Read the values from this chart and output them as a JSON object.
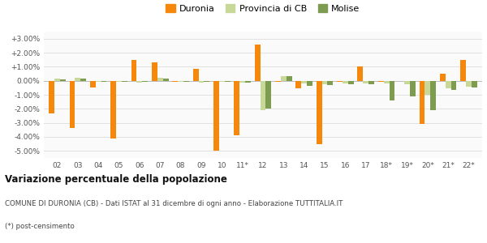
{
  "categories": [
    "02",
    "03",
    "04",
    "05",
    "06",
    "07",
    "08",
    "09",
    "10",
    "11*",
    "12",
    "13",
    "14",
    "15",
    "16",
    "17",
    "18*",
    "19*",
    "20*",
    "21*",
    "22*"
  ],
  "duronia": [
    -2.3,
    -3.35,
    -0.5,
    -4.1,
    1.5,
    1.3,
    -0.1,
    0.85,
    -5.0,
    -3.9,
    2.6,
    -0.1,
    -0.55,
    -4.5,
    -0.1,
    1.0,
    -0.1,
    0.0,
    -3.1,
    0.5,
    1.5
  ],
  "provincia_cb": [
    0.15,
    0.2,
    -0.05,
    -0.1,
    -0.15,
    0.2,
    -0.05,
    -0.15,
    -0.05,
    -0.15,
    -2.1,
    0.35,
    -0.2,
    -0.25,
    -0.2,
    -0.2,
    -0.2,
    -0.25,
    -1.0,
    -0.55,
    -0.4
  ],
  "molise": [
    0.1,
    0.15,
    -0.1,
    -0.1,
    -0.1,
    0.15,
    -0.1,
    -0.1,
    -0.05,
    -0.15,
    -2.0,
    0.3,
    -0.35,
    -0.3,
    -0.25,
    -0.25,
    -1.4,
    -1.1,
    -2.1,
    -0.65,
    -0.5
  ],
  "color_duronia": "#f5870a",
  "color_provincia": "#c8d898",
  "color_molise": "#7d9c50",
  "title": "Variazione percentuale della popolazione",
  "subtitle": "COMUNE DI DURONIA (CB) - Dati ISTAT al 31 dicembre di ogni anno - Elaborazione TUTTITALIA.IT",
  "footnote": "(*) post-censimento",
  "ylim": [
    -5.5,
    3.5
  ],
  "yticks": [
    -5.0,
    -4.0,
    -3.0,
    -2.0,
    -1.0,
    0.0,
    1.0,
    2.0,
    3.0
  ],
  "ytick_labels": [
    "-5.00%",
    "-4.00%",
    "-3.00%",
    "-2.00%",
    "-1.00%",
    "0.00%",
    "+1.00%",
    "+2.00%",
    "+3.00%"
  ],
  "bg_color": "#fafafa"
}
